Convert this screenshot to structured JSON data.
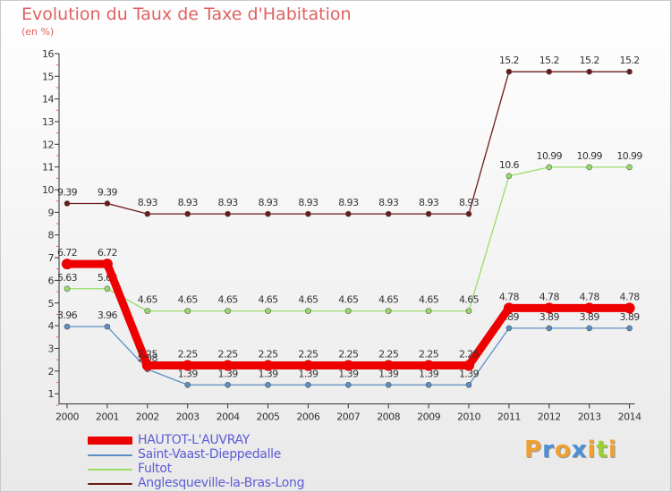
{
  "title": "Evolution du Taux de Taxe d'Habitation",
  "unit_label": "(en %)",
  "logo": {
    "text": "Proxiti",
    "colors": [
      "#f0a030",
      "#4b8fd6",
      "#f0a030",
      "#4b8fd6",
      "#f0a030",
      "#9bd030",
      "#f0a030"
    ]
  },
  "colors": {
    "accent": "#e06060",
    "legend_text": "#5c5cd6"
  },
  "chart_data": {
    "type": "line",
    "title": "Evolution du Taux de Taxe d'Habitation",
    "ylabel": "(en %)",
    "xlabel": "",
    "ylim": [
      0,
      16
    ],
    "yticks": [
      1,
      2,
      3,
      4,
      5,
      6,
      7,
      8,
      9,
      10,
      11,
      12,
      13,
      14,
      15,
      16
    ],
    "grid": false,
    "legend_position": "bottom-left",
    "x": [
      "2000",
      "2001",
      "2002",
      "2003",
      "2004",
      "2005",
      "2006",
      "2007",
      "2008",
      "2009",
      "2010",
      "2011",
      "2012",
      "2013",
      "2014"
    ],
    "series": [
      {
        "name": "Anglesqueville-la-Bras-Long",
        "color": "#6b1a1a",
        "values": [
          9.39,
          9.39,
          8.93,
          8.93,
          8.93,
          8.93,
          8.93,
          8.93,
          8.93,
          8.93,
          8.93,
          15.2,
          15.2,
          15.2,
          15.2
        ],
        "labels": [
          "9.39",
          "9.39",
          "8.93",
          "8.93",
          "8.93",
          "8.93",
          "8.93",
          "8.93",
          "8.93",
          "8.93",
          "8.93",
          "15.2",
          "15.2",
          "15.2",
          "15.2"
        ]
      },
      {
        "name": "Fultot",
        "color": "#99dd66",
        "values": [
          5.63,
          5.63,
          4.65,
          4.65,
          4.65,
          4.65,
          4.65,
          4.65,
          4.65,
          4.65,
          4.65,
          10.6,
          10.99,
          10.99,
          10.99
        ],
        "labels": [
          "5.63",
          "5.63",
          "4.65",
          "4.65",
          "4.65",
          "4.65",
          "4.65",
          "4.65",
          "4.65",
          "4.65",
          "4.65",
          "10.6",
          "10.99",
          "10.99",
          "10.99"
        ]
      },
      {
        "name": "Saint-Vaast-Dieppedalle",
        "color": "#5b8fc4",
        "values": [
          3.96,
          3.96,
          2.08,
          1.39,
          1.39,
          1.39,
          1.39,
          1.39,
          1.39,
          1.39,
          1.39,
          3.89,
          3.89,
          3.89,
          3.89
        ],
        "labels": [
          "3.96",
          "3.96",
          "2.08",
          "1.39",
          "1.39",
          "1.39",
          "1.39",
          "1.39",
          "1.39",
          "1.39",
          "1.39",
          "3.89",
          "3.89",
          "3.89",
          "3.89"
        ]
      },
      {
        "name": "HAUTOT-L'AUVRAY",
        "color": "#ee0000",
        "values": [
          6.72,
          6.72,
          2.25,
          2.25,
          2.25,
          2.25,
          2.25,
          2.25,
          2.25,
          2.25,
          2.25,
          4.78,
          4.78,
          4.78,
          4.78
        ],
        "labels": [
          "6.72",
          "6.72",
          "2.25",
          "2.25",
          "2.25",
          "2.25",
          "2.25",
          "2.25",
          "2.25",
          "2.25",
          "2.25",
          "4.78",
          "4.78",
          "4.78",
          "4.78"
        ]
      }
    ],
    "legend_order": [
      "HAUTOT-L'AUVRAY",
      "Saint-Vaast-Dieppedalle",
      "Fultot",
      "Anglesqueville-la-Bras-Long"
    ]
  }
}
